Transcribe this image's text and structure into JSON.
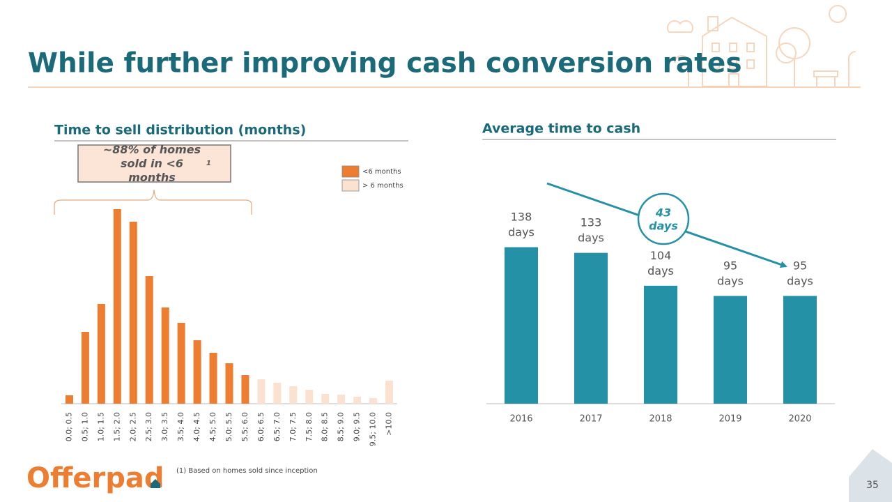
{
  "title": "While further improving cash conversion rates",
  "footnote": "(1) Based on homes sold since inception",
  "page_number": "35",
  "logo": "Offerpad",
  "chart_data": [
    {
      "type": "bar",
      "title": "Time to sell distribution (months)",
      "categories": [
        "0.0; 0.5",
        "0.5; 1.0",
        "1.0; 1.5",
        "1.5; 2.0",
        "2.0; 2.5",
        "2.5; 3.0",
        "3.0; 3.5",
        "3.5; 4.0",
        "4.0; 4.5",
        "4.5; 5.0",
        "5.0; 5.5",
        "5.5; 6.0",
        "6.0; 6.5",
        "6.5; 7.0",
        "7.0; 7.5",
        "7.5; 8.0",
        "8.0; 8.5",
        "8.5; 9.0",
        "9.0; 9.5",
        "9.5; 10.0",
        ">10.0"
      ],
      "series": [
        {
          "name": "<6 months",
          "color": "#ed7d31",
          "values": [
            12,
            103,
            143,
            279,
            261,
            183,
            138,
            116,
            91,
            73,
            58,
            41,
            null,
            null,
            null,
            null,
            null,
            null,
            null,
            null,
            null
          ]
        },
        {
          "name": "> 6 months",
          "color": "#fbe1d0",
          "values": [
            null,
            null,
            null,
            null,
            null,
            null,
            null,
            null,
            null,
            null,
            null,
            null,
            35,
            30,
            25,
            20,
            14,
            13,
            10,
            8,
            33
          ]
        }
      ],
      "ylim": [
        0,
        280
      ],
      "annotation": {
        "text": "~88% of homes sold in <6 months",
        "note": "1"
      }
    },
    {
      "type": "bar",
      "title": "Average time to cash",
      "categories": [
        "2016",
        "2017",
        "2018",
        "2019",
        "2020"
      ],
      "values": [
        138,
        133,
        104,
        95,
        95
      ],
      "value_labels": [
        "138 days",
        "133 days",
        "104 days",
        "95 days",
        "95 days"
      ],
      "color": "#2591a6",
      "ylim": [
        0,
        150
      ],
      "annotation": "43 days"
    }
  ]
}
